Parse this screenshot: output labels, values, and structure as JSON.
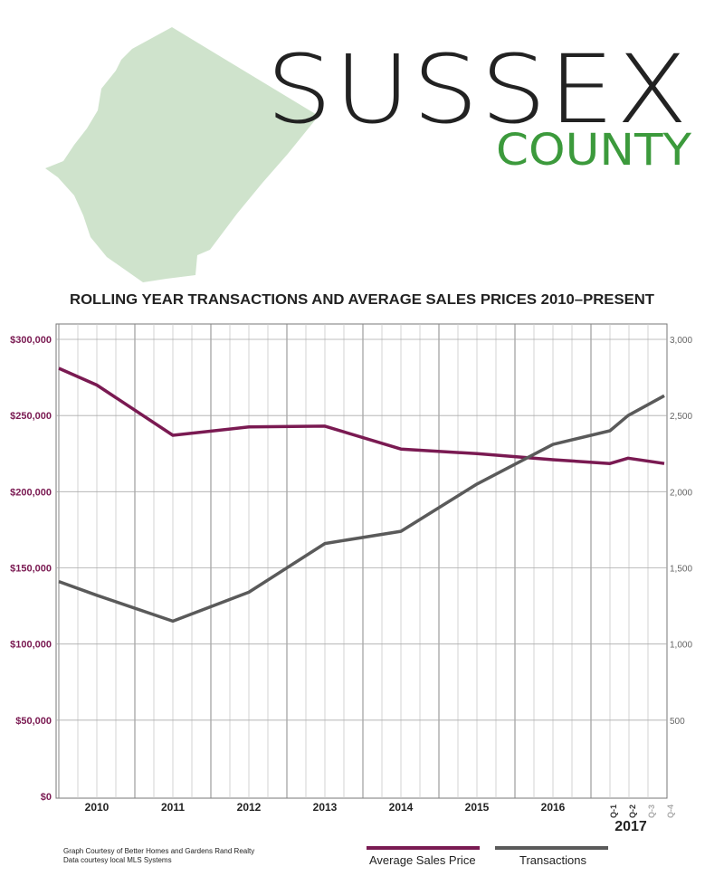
{
  "header": {
    "title": "SUSSEX",
    "subtitle": "COUNTY",
    "map_icon": "sussex-county-map-icon",
    "map_color": "#cfe3cc",
    "subtitle_color": "#3c9a3c"
  },
  "chart_data": {
    "type": "line",
    "title": "ROLLING YEAR TRANSACTIONS AND AVERAGE SALES PRICES 2010–PRESENT",
    "x_labels": [
      "2010",
      "2011",
      "2012",
      "2013",
      "2014",
      "2015",
      "2016"
    ],
    "quarter_labels": [
      "Q-1",
      "Q-2",
      "Q-3",
      "Q-4"
    ],
    "quarter_year": "2017",
    "y_left": {
      "ticks": [
        "$0",
        "$50,000",
        "$100,000",
        "$150,000",
        "$200,000",
        "$250,000",
        "$300,000"
      ],
      "range": [
        0,
        300000
      ],
      "color": "#7a1a52"
    },
    "y_right": {
      "ticks": [
        "500",
        "1,000",
        "1,500",
        "2,000",
        "2,500",
        "3,000"
      ],
      "range": [
        0,
        3000
      ],
      "color": "#666666"
    },
    "grid": true,
    "series": [
      {
        "name": "Average Sales Price",
        "axis": "left",
        "color": "#7a1a52",
        "points": [
          [
            2009.5,
            281000
          ],
          [
            2010,
            270000
          ],
          [
            2011,
            237000
          ],
          [
            2012,
            242500
          ],
          [
            2013,
            243000
          ],
          [
            2014,
            228000
          ],
          [
            2015,
            225000
          ],
          [
            2016,
            221000
          ],
          [
            2016.75,
            218500
          ],
          [
            2017.0,
            222000
          ],
          [
            2017.5,
            218500
          ]
        ]
      },
      {
        "name": "Transactions",
        "axis": "right",
        "color": "#5a5a5a",
        "points": [
          [
            2009.5,
            1410
          ],
          [
            2010,
            1320
          ],
          [
            2011,
            1150
          ],
          [
            2012,
            1340
          ],
          [
            2013,
            1660
          ],
          [
            2014,
            1740
          ],
          [
            2015,
            2050
          ],
          [
            2016,
            2310
          ],
          [
            2016.75,
            2400
          ],
          [
            2017.0,
            2500
          ],
          [
            2017.5,
            2630
          ]
        ]
      }
    ],
    "legend": [
      "Average Sales Price",
      "Transactions"
    ]
  },
  "footer": {
    "credit_line1": "Graph Courtesy of Better Homes and Gardens Rand Realty",
    "credit_line2": "Data courtesy local MLS Systems"
  }
}
